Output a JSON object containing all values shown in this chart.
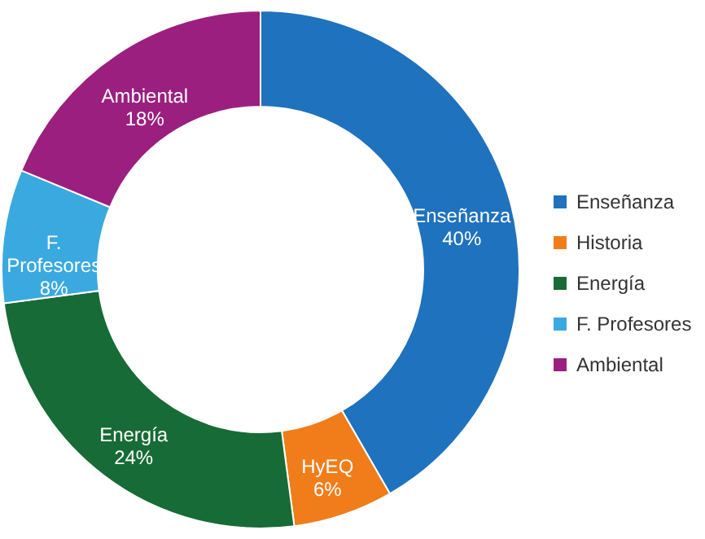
{
  "chart_data": {
    "type": "donut",
    "categories": [
      "Enseñanza",
      "Historia",
      "Energía",
      "F. Profesores",
      "Ambiental"
    ],
    "values": [
      40,
      6,
      24,
      8,
      18
    ],
    "colors": [
      "#1f72bd",
      "#f07d1a",
      "#176b36",
      "#3aa9e0",
      "#9b1f7f"
    ],
    "value_labels": [
      "Enseñanza\n40%",
      "HyEQ\n6%",
      "Energía\n24%",
      "F.\nProfesores\n8%",
      "Ambiental\n18%"
    ],
    "legend": "right"
  }
}
